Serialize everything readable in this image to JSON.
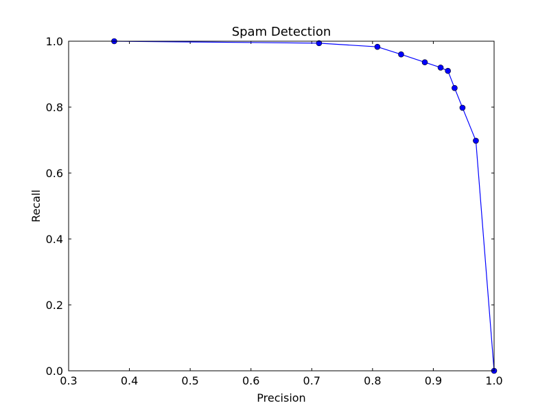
{
  "chart_data": {
    "type": "line",
    "title": "Spam Detection",
    "xlabel": "Precision",
    "ylabel": "Recall",
    "xlim": [
      0.3,
      1.0
    ],
    "ylim": [
      0.0,
      1.0
    ],
    "xticks": [
      0.3,
      0.4,
      0.5,
      0.6,
      0.7,
      0.8,
      0.9,
      1.0
    ],
    "xtick_labels": [
      "0.3",
      "0.4",
      "0.5",
      "0.6",
      "0.7",
      "0.8",
      "0.9",
      "1.0"
    ],
    "yticks": [
      0.0,
      0.2,
      0.4,
      0.6,
      0.8,
      1.0
    ],
    "ytick_labels": [
      "0.0",
      "0.2",
      "0.4",
      "0.6",
      "0.8",
      "1.0"
    ],
    "grid": false,
    "legend": null,
    "series": [
      {
        "color": "#0000ff",
        "marker": "circle",
        "points": [
          {
            "x": 0.375,
            "y": 1.0
          },
          {
            "x": 0.712,
            "y": 0.994
          },
          {
            "x": 0.808,
            "y": 0.983
          },
          {
            "x": 0.847,
            "y": 0.96
          },
          {
            "x": 0.886,
            "y": 0.936
          },
          {
            "x": 0.912,
            "y": 0.92
          },
          {
            "x": 0.924,
            "y": 0.91
          },
          {
            "x": 0.935,
            "y": 0.858
          },
          {
            "x": 0.948,
            "y": 0.798
          },
          {
            "x": 0.97,
            "y": 0.698
          },
          {
            "x": 1.0,
            "y": 0.0
          }
        ]
      }
    ]
  }
}
